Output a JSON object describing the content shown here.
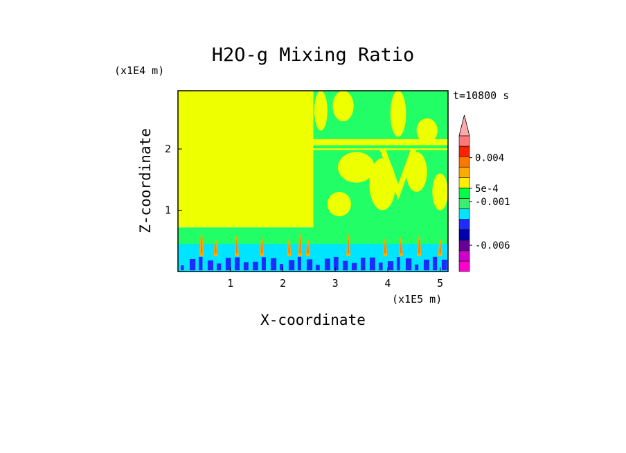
{
  "figure": {
    "title": "H2O-g Mixing Ratio",
    "z_unit_label": "(x1E4 m)",
    "x_unit_label": "(x1E5 m)",
    "time_label": "t=10800 s"
  },
  "chart_data": {
    "type": "heatmap",
    "title": "H2O-g Mixing Ratio",
    "xlabel": "X-coordinate",
    "ylabel": "Z-coordinate",
    "x_unit": "(x1E5 m)",
    "y_unit": "(x1E4 m)",
    "xlim": [
      0,
      5.15
    ],
    "ylim": [
      0,
      2.95
    ],
    "x_ticks": [
      1,
      2,
      3,
      4,
      5
    ],
    "y_ticks": [
      1,
      2
    ],
    "time": "t=10800 s",
    "colorbar": {
      "labels": [
        {
          "text": "0.004",
          "value": 0.004
        },
        {
          "text": "5e-4",
          "value": 0.0005
        },
        {
          "text": "-0.001",
          "value": -0.001
        },
        {
          "text": "-0.006",
          "value": -0.006
        }
      ],
      "colors_bottom_to_top": [
        "#ff00cc",
        "#cc00cc",
        "#660099",
        "#0000aa",
        "#1e2bff",
        "#00e5ff",
        "#3aef70",
        "#00ff44",
        "#ffee00",
        "#ffaa00",
        "#ff7700",
        "#ff2200",
        "#ff7777"
      ],
      "arrow_color": "#ffaaaa"
    },
    "regions": [
      {
        "name": "upper-left layer",
        "x": [
          0,
          2.58
        ],
        "z": [
          0.72,
          2.95
        ],
        "color": "#eeff00"
      },
      {
        "name": "upper-right layer",
        "x": [
          2.58,
          5.15
        ],
        "z": [
          0.55,
          2.95
        ],
        "color": "#22ff66",
        "patch_color": "#eeff00"
      },
      {
        "name": "lower layer",
        "x": [
          0,
          5.15
        ],
        "z": [
          0.3,
          0.72
        ],
        "color": "#22ff66"
      },
      {
        "name": "near-surface layer",
        "x": [
          0,
          5.15
        ],
        "z": [
          0.0,
          0.45
        ],
        "color": "#00e5ff",
        "patch_color": "#1e2bff"
      }
    ],
    "plumes_x": [
      0.45,
      0.72,
      1.12,
      1.6,
      2.12,
      2.33,
      2.48,
      3.25,
      3.95,
      4.25,
      4.6,
      5.0
    ]
  }
}
